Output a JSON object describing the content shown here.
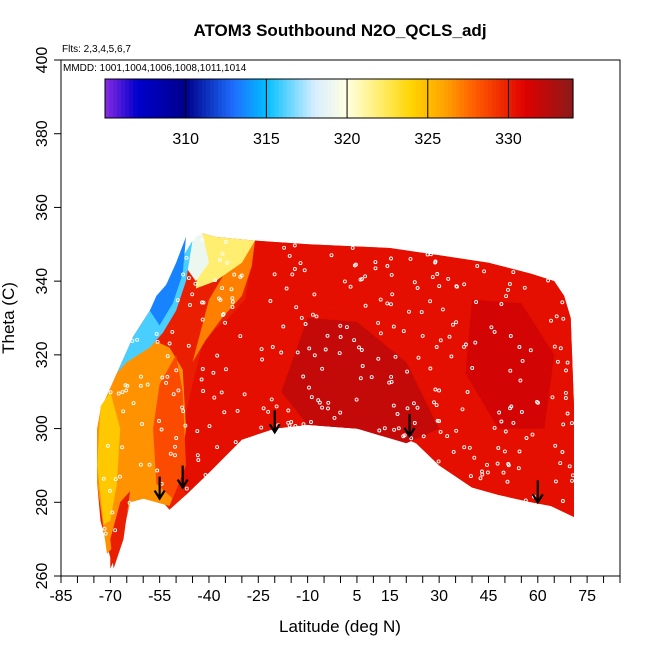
{
  "chart_data": {
    "type": "heatmap",
    "title": "ATOM3 Southbound N2O_QCLS_adj",
    "flights_note": "Flts: 2,3,4,5,6,7",
    "dates_note": "MMDD: 1001,1004,1006,1008,1011,1014",
    "xlabel": "Latitude (deg N)",
    "ylabel": "Theta (C)",
    "xlim": [
      -85,
      85
    ],
    "ylim": [
      260,
      400
    ],
    "x_ticks": [
      -85,
      -70,
      -55,
      -40,
      -25,
      -10,
      5,
      15,
      30,
      45,
      60,
      75
    ],
    "x_minor_step": 5,
    "y_ticks": [
      260,
      280,
      300,
      320,
      340,
      360,
      380,
      400
    ],
    "colorbar": {
      "range": [
        305,
        334
      ],
      "ticks": [
        310,
        315,
        320,
        325,
        330
      ],
      "colors": {
        "305": "#8a2be2",
        "307": "#0000cd",
        "310": "#00008b",
        "313": "#1e6fff",
        "315": "#00bfff",
        "318": "#d8eeff",
        "320": "#ffffe0",
        "322": "#ffee70",
        "324": "#ffd400",
        "326": "#ffa500",
        "328": "#ff5a00",
        "331": "#e00000",
        "334": "#8b1a1a"
      }
    },
    "domain_bottom": [
      [
        -70,
        262
      ],
      [
        -67,
        268
      ],
      [
        -64,
        280
      ],
      [
        -60,
        281
      ],
      [
        -55,
        281
      ],
      [
        -52,
        278
      ],
      [
        -47,
        282
      ],
      [
        -40,
        288
      ],
      [
        -30,
        297
      ],
      [
        -20,
        300
      ],
      [
        -10,
        301
      ],
      [
        5,
        300
      ],
      [
        15,
        299
      ],
      [
        23,
        296
      ],
      [
        30,
        290
      ],
      [
        40,
        284
      ],
      [
        48,
        282
      ],
      [
        58,
        280
      ],
      [
        64,
        279
      ],
      [
        71,
        276
      ]
    ],
    "domain_top": [
      [
        71,
        276
      ],
      [
        71,
        306
      ],
      [
        70,
        330
      ],
      [
        68,
        336
      ],
      [
        65,
        340
      ],
      [
        58,
        342
      ],
      [
        45,
        345
      ],
      [
        30,
        347
      ],
      [
        15,
        349
      ],
      [
        -10,
        350
      ],
      [
        -26,
        351
      ],
      [
        -38,
        352
      ],
      [
        -42,
        353
      ],
      [
        -47,
        347
      ],
      [
        -53,
        339
      ],
      [
        -58,
        332
      ],
      [
        -63,
        325
      ],
      [
        -68,
        315
      ],
      [
        -73,
        305
      ],
      [
        -74,
        300
      ],
      [
        -74,
        285
      ],
      [
        -73,
        275
      ],
      [
        -70,
        265
      ]
    ],
    "regions": [
      {
        "value": 330.5,
        "points": [
          [
            -47,
            282
          ],
          [
            -40,
            288
          ],
          [
            -30,
            297
          ],
          [
            -20,
            300
          ],
          [
            -10,
            301
          ],
          [
            5,
            300
          ],
          [
            15,
            299
          ],
          [
            23,
            296
          ],
          [
            30,
            290
          ],
          [
            40,
            284
          ],
          [
            48,
            282
          ],
          [
            58,
            280
          ],
          [
            64,
            279
          ],
          [
            71,
            276
          ],
          [
            71,
            306
          ],
          [
            70,
            330
          ],
          [
            68,
            336
          ],
          [
            65,
            340
          ],
          [
            58,
            342
          ],
          [
            45,
            345
          ],
          [
            30,
            347
          ],
          [
            15,
            349
          ],
          [
            -10,
            350
          ],
          [
            -26,
            351
          ],
          [
            -27,
            345
          ],
          [
            -29,
            335
          ],
          [
            -34,
            330
          ],
          [
            -38,
            327
          ],
          [
            -42,
            323
          ],
          [
            -45,
            312
          ],
          [
            -48,
            300
          ],
          [
            -50,
            288
          ]
        ]
      },
      {
        "value": 332,
        "points": [
          [
            -10,
            330
          ],
          [
            5,
            329
          ],
          [
            20,
            318
          ],
          [
            30,
            300
          ],
          [
            20,
            296
          ],
          [
            5,
            300
          ],
          [
            -10,
            301
          ],
          [
            -18,
            310
          ]
        ]
      },
      {
        "value": 331.5,
        "points": [
          [
            40,
            335
          ],
          [
            55,
            334
          ],
          [
            65,
            320
          ],
          [
            62,
            300
          ],
          [
            48,
            300
          ],
          [
            38,
            315
          ]
        ]
      },
      {
        "value": 326.5,
        "points": [
          [
            -74,
            300
          ],
          [
            -73,
            305
          ],
          [
            -68,
            315
          ],
          [
            -63,
            322
          ],
          [
            -57,
            324
          ],
          [
            -52,
            322
          ],
          [
            -48,
            316
          ],
          [
            -47,
            300
          ],
          [
            -49,
            286
          ],
          [
            -52,
            279
          ],
          [
            -60,
            281
          ],
          [
            -64,
            280
          ],
          [
            -67,
            270
          ],
          [
            -71,
            266
          ],
          [
            -74,
            285
          ]
        ]
      },
      {
        "value": 328.5,
        "points": [
          [
            -55,
            312
          ],
          [
            -50,
            320
          ],
          [
            -48,
            310
          ],
          [
            -47,
            290
          ],
          [
            -51,
            281
          ],
          [
            -56,
            285
          ],
          [
            -57,
            300
          ]
        ]
      },
      {
        "value": 324.5,
        "points": [
          [
            -74,
            290
          ],
          [
            -73,
            306
          ],
          [
            -70,
            310
          ],
          [
            -67,
            300
          ],
          [
            -68,
            285
          ],
          [
            -70,
            275
          ],
          [
            -72,
            274
          ]
        ]
      },
      {
        "value": 330,
        "points": [
          [
            -70,
            270
          ],
          [
            -67,
            280
          ],
          [
            -64,
            283
          ],
          [
            -66,
            270
          ],
          [
            -69,
            262
          ]
        ]
      },
      {
        "value": 327,
        "points": [
          [
            -45,
            318
          ],
          [
            -40,
            335
          ],
          [
            -30,
            350
          ],
          [
            -26,
            351
          ],
          [
            -27,
            344
          ],
          [
            -30,
            336
          ],
          [
            -36,
            330
          ],
          [
            -41,
            324
          ]
        ]
      },
      {
        "value": 322,
        "points": [
          [
            -42,
            353
          ],
          [
            -38,
            352
          ],
          [
            -26,
            351
          ],
          [
            -30,
            345
          ],
          [
            -38,
            340
          ],
          [
            -44,
            338
          ]
        ]
      },
      {
        "value": 319,
        "points": [
          [
            -44,
            352
          ],
          [
            -42,
            353
          ],
          [
            -40,
            345
          ],
          [
            -44,
            340
          ],
          [
            -48,
            345
          ]
        ]
      },
      {
        "value": 316,
        "points": [
          [
            -45,
            351
          ],
          [
            -53,
            339
          ],
          [
            -58,
            332
          ],
          [
            -63,
            325
          ],
          [
            -68,
            315
          ],
          [
            -65,
            318
          ],
          [
            -58,
            322
          ],
          [
            -54,
            326
          ],
          [
            -50,
            332
          ],
          [
            -47,
            340
          ]
        ]
      },
      {
        "value": 313.5,
        "points": [
          [
            -47,
            352
          ],
          [
            -50,
            345
          ],
          [
            -53,
            339
          ],
          [
            -56,
            336
          ],
          [
            -58,
            332
          ],
          [
            -55,
            328
          ],
          [
            -51,
            334
          ],
          [
            -48,
            342
          ]
        ]
      }
    ],
    "arrows": [
      {
        "lat": -55,
        "theta": 281
      },
      {
        "lat": -48,
        "theta": 284
      },
      {
        "lat": -20,
        "theta": 299
      },
      {
        "lat": 21,
        "theta": 298
      },
      {
        "lat": 60,
        "theta": 280
      }
    ]
  }
}
